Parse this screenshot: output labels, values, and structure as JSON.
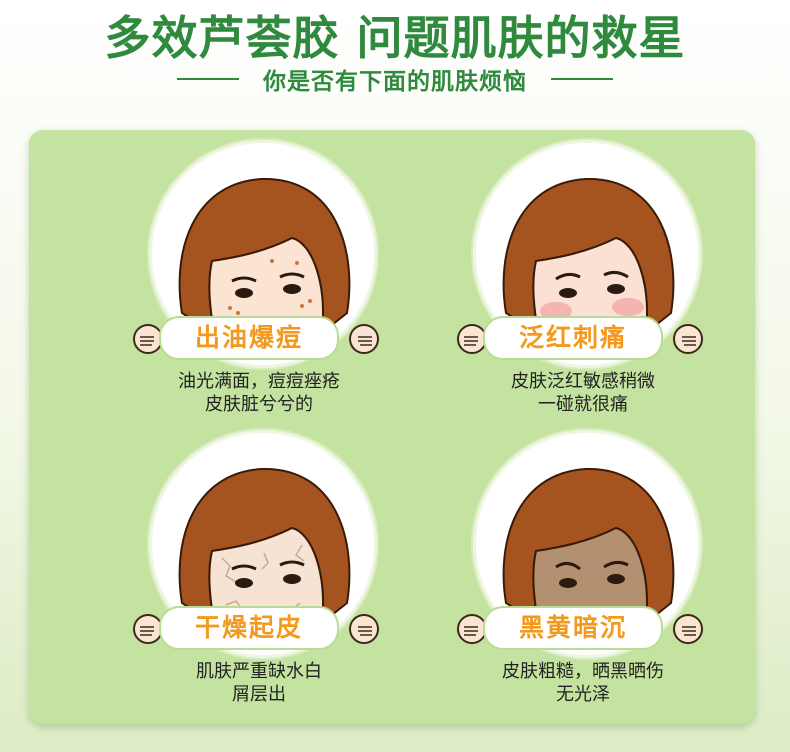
{
  "header": {
    "title": "多效芦荟胶 问题肌肤的救星",
    "subtitle": "你是否有下面的肌肤烦恼"
  },
  "colors": {
    "title_green": "#2f8a3e",
    "panel_green": "#c4e3a0",
    "tag_orange": "#f39a1e"
  },
  "cards": [
    {
      "tag": "出油爆痘",
      "desc1": "油光满面，痘痘痤疮",
      "desc2": "皮肤脏兮兮的",
      "skin": "#fbe4d2",
      "icon": "oily-acne-face-icon"
    },
    {
      "tag": "泛红刺痛",
      "desc1": "皮肤泛红敏感稍微",
      "desc2": "一碰就很痛",
      "skin": "#fbe1d4",
      "icon": "red-sensitive-face-icon"
    },
    {
      "tag": "干燥起皮",
      "desc1": "肌肤严重缺水白",
      "desc2": "屑层出",
      "skin": "#f7e3d4",
      "icon": "dry-flaky-face-icon"
    },
    {
      "tag": "黑黄暗沉",
      "desc1": "皮肤粗糙，晒黑晒伤",
      "desc2": "无光泽",
      "skin": "#b39070",
      "icon": "dull-dark-face-icon"
    }
  ]
}
